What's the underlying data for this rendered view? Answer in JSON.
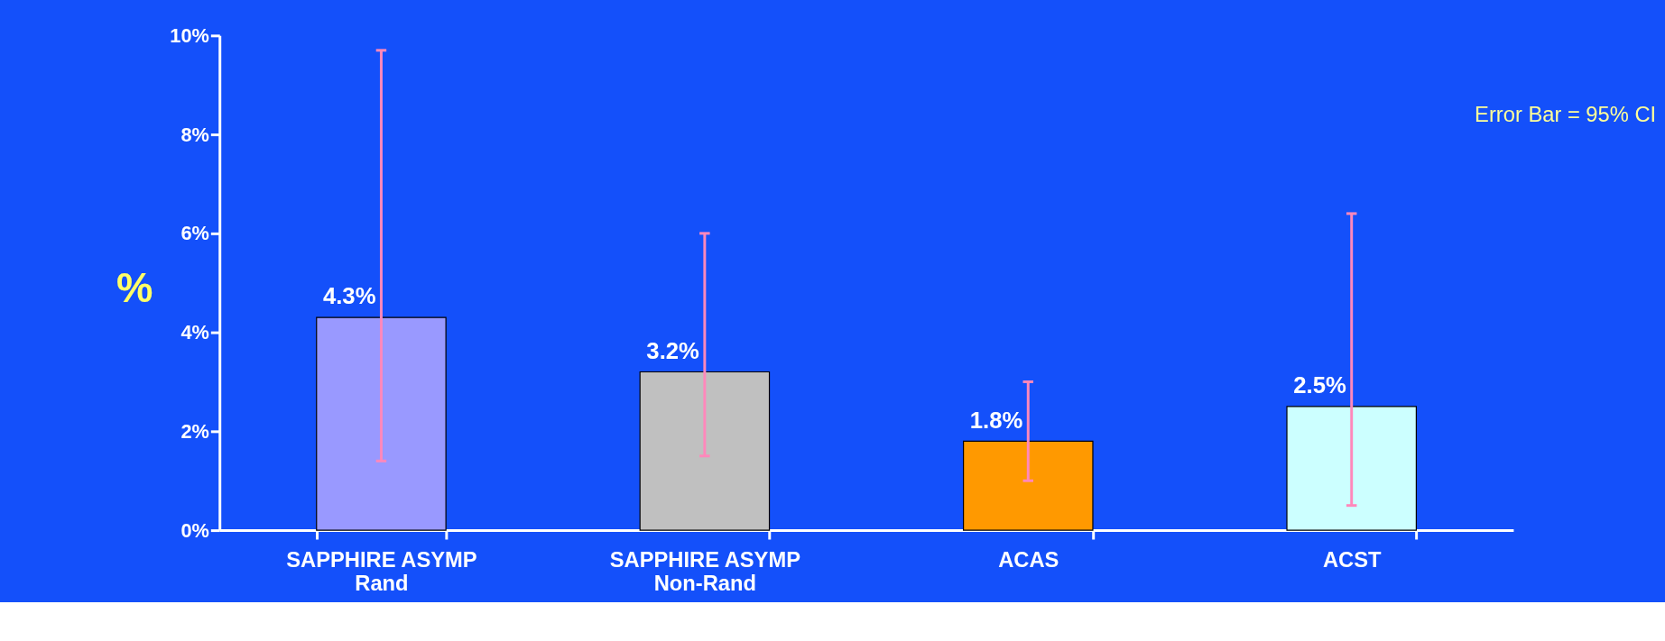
{
  "chart_data": {
    "type": "bar",
    "ylabel": "%",
    "categories": [
      "SAPPHIRE ASYMP\nRand",
      "SAPPHIRE ASYMP\nNon-Rand",
      "ACAS",
      "ACST"
    ],
    "values": [
      4.3,
      3.2,
      1.8,
      2.5
    ],
    "colors": [
      "#9999ff",
      "#c0c0c0",
      "#ff9900",
      "#ccffff"
    ],
    "value_labels": [
      "4.3%",
      "3.2%",
      "1.8%",
      "2.5%"
    ],
    "errors": [
      [
        1.4,
        9.7
      ],
      [
        1.5,
        6.0
      ],
      [
        1.0,
        3.0
      ],
      [
        0.5,
        6.4
      ]
    ],
    "ylim": [
      0,
      10
    ],
    "yticks": [
      {
        "value": 0,
        "label": "0%"
      },
      {
        "value": 2,
        "label": "2%"
      },
      {
        "value": 4,
        "label": "4%"
      },
      {
        "value": 6,
        "label": "6%"
      },
      {
        "value": 8,
        "label": "8%"
      },
      {
        "value": 10,
        "label": "10%"
      }
    ],
    "annotations": [
      "Error Bar = 95% CI"
    ],
    "grid": false
  }
}
